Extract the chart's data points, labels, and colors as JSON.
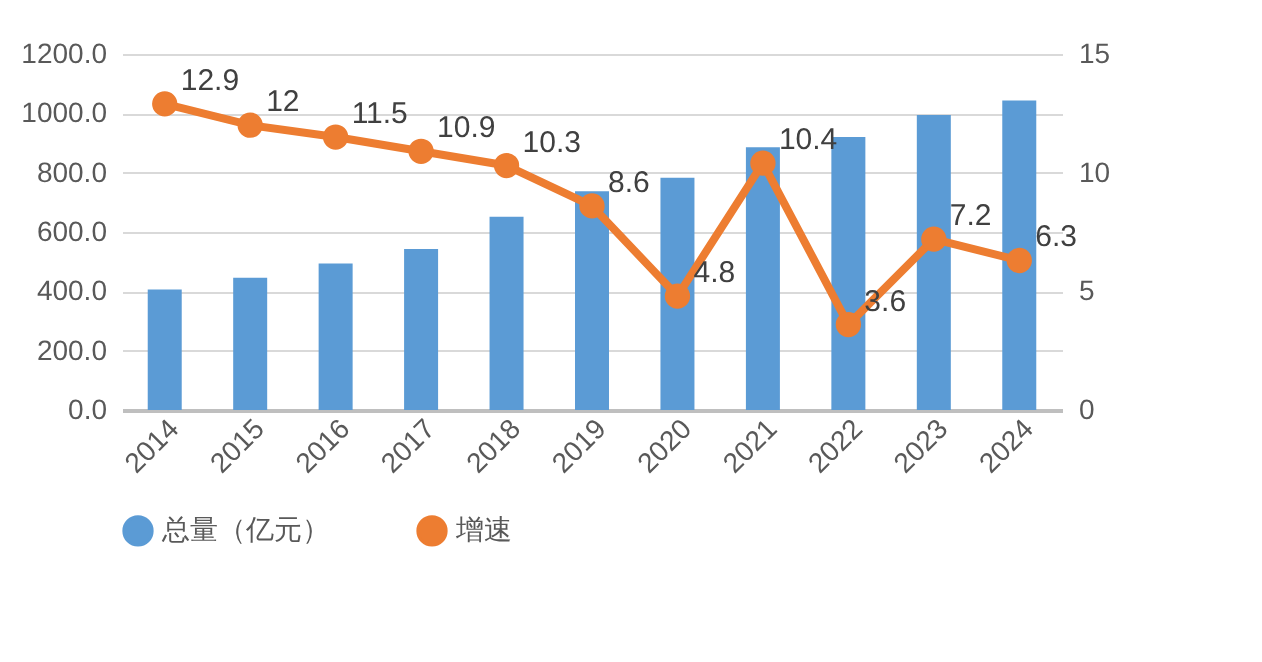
{
  "chart_data": {
    "type": "bar",
    "categories": [
      "2014",
      "2015",
      "2016",
      "2017",
      "2018",
      "2019",
      "2020",
      "2021",
      "2022",
      "2023",
      "2024"
    ],
    "series": [
      {
        "name": "总量（亿元）",
        "color": "#5b9bd5",
        "values": [
          406,
          446,
          494,
          543,
          651,
          737,
          783,
          886,
          920,
          994,
          1043
        ]
      },
      {
        "name": "增速",
        "type": "line",
        "axis": "y2",
        "color": "#ed7d31",
        "values": [
          12.9,
          12,
          11.5,
          10.9,
          10.3,
          8.6,
          4.8,
          10.4,
          3.6,
          7.2,
          6.3
        ],
        "value_labels": [
          "12.9",
          "12",
          "11.5",
          "10.9",
          "10.3",
          "8.6",
          "4.8",
          "10.4",
          "3.6",
          "7.2",
          "6.3"
        ]
      }
    ],
    "ylim": [
      0,
      1200
    ],
    "yticks": [
      {
        "value": 0,
        "label": "0.0"
      },
      {
        "value": 200,
        "label": "200.0"
      },
      {
        "value": 400,
        "label": "400.0"
      },
      {
        "value": 600,
        "label": "600.0"
      },
      {
        "value": 800,
        "label": "800.0"
      },
      {
        "value": 1000,
        "label": "1000.0"
      },
      {
        "value": 1200,
        "label": "1200.0"
      }
    ],
    "y2lim": [
      0,
      15
    ],
    "y2ticks": [
      0,
      5,
      10,
      15
    ],
    "grid": "y",
    "legend": "bottom",
    "marker": "circle"
  }
}
